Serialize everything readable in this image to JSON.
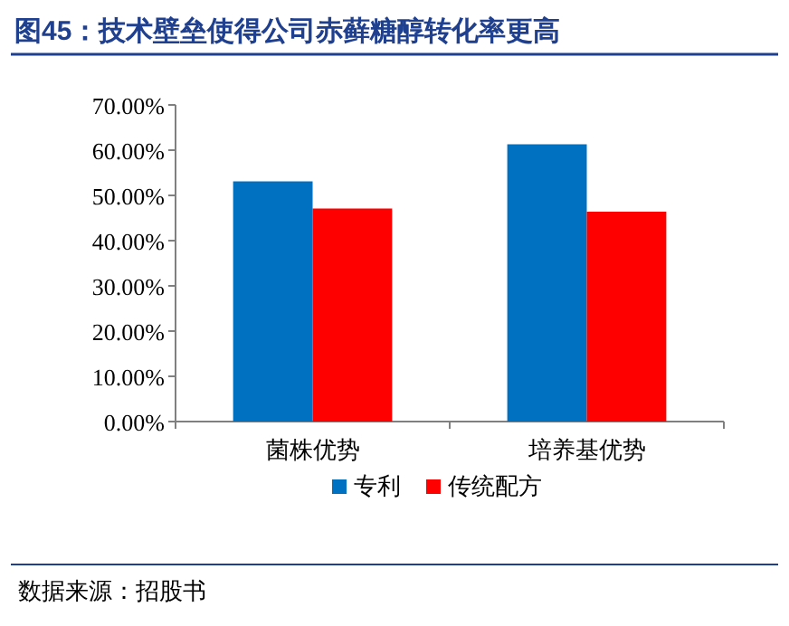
{
  "chart_data": {
    "type": "bar",
    "title": "图45：技术壁垒使得公司赤藓糖醇转化率更高",
    "categories": [
      "菌株优势",
      "培养基优势"
    ],
    "series": [
      {
        "name": "专利",
        "color": "#0070c0",
        "values": [
          53.1,
          61.3
        ]
      },
      {
        "name": "传统配方",
        "color": "#ff0000",
        "values": [
          47.1,
          46.4
        ]
      }
    ],
    "ylim": [
      0,
      70
    ],
    "yticks": [
      {
        "value": 0,
        "label": "0.00%"
      },
      {
        "value": 10,
        "label": "10.00%"
      },
      {
        "value": 20,
        "label": "20.00%"
      },
      {
        "value": 30,
        "label": "30.00%"
      },
      {
        "value": 40,
        "label": "40.00%"
      },
      {
        "value": 50,
        "label": "50.00%"
      },
      {
        "value": 60,
        "label": "60.00%"
      },
      {
        "value": 70,
        "label": "70.00%"
      }
    ],
    "grid": false,
    "legend": "bottom",
    "annotations": [
      "数据来源：招股书"
    ]
  }
}
